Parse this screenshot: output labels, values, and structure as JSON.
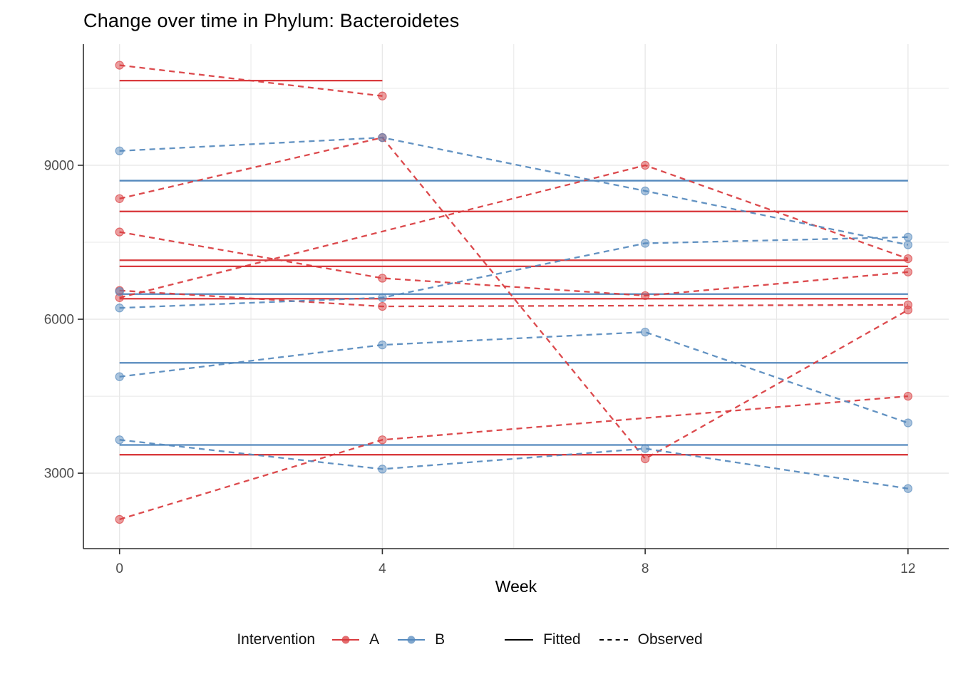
{
  "header": {
    "title": "Change over time in Phylum: Bacteroidetes"
  },
  "colors": {
    "red": "#D93B3E",
    "blue": "#5589BD",
    "grid": "#E8E8E8",
    "axis": "#2F2F2F",
    "tick_text": "#4D4D4D",
    "black": "#000000"
  },
  "legend": {
    "title": "Intervention",
    "groups": [
      {
        "label": "A",
        "color": "#D93B3E"
      },
      {
        "label": "B",
        "color": "#5589BD"
      }
    ],
    "linetypes": [
      {
        "label": "Fitted",
        "style": "solid"
      },
      {
        "label": "Observed",
        "style": "dashed"
      }
    ]
  },
  "chart_data": {
    "type": "line",
    "title": "Change over time in Phylum: Bacteroidetes",
    "xlabel": "Week",
    "ylabel": "",
    "xlim": [
      -0.55,
      12.62
    ],
    "ylim": [
      1530,
      11360
    ],
    "x_ticks": [
      0,
      4,
      8,
      12
    ],
    "x_minor": [
      2,
      6,
      10
    ],
    "y_ticks": [
      3000,
      6000,
      9000
    ],
    "y_minor": [
      4500,
      7500,
      10500
    ],
    "grid": true,
    "legend_position": "bottom",
    "series": [
      {
        "id": "A1",
        "group": "A",
        "color": "#D93B3E",
        "observed": {
          "weeks": [
            0,
            4
          ],
          "values": [
            10950,
            10350
          ]
        },
        "fitted": {
          "value": 10650,
          "weeks": [
            0,
            4
          ]
        }
      },
      {
        "id": "A2",
        "group": "A",
        "color": "#D93B3E",
        "observed": {
          "weeks": [
            0,
            4,
            8,
            12
          ],
          "values": [
            8350,
            9540,
            3280,
            6180
          ]
        },
        "fitted": {
          "value": 8100,
          "weeks": [
            0,
            12
          ]
        }
      },
      {
        "id": "A3",
        "group": "A",
        "color": "#D93B3E",
        "observed": {
          "weeks": [
            0,
            8,
            12
          ],
          "values": [
            6420,
            9000,
            7180
          ]
        },
        "fitted": {
          "value": 7150,
          "weeks": [
            0,
            12
          ]
        }
      },
      {
        "id": "A4",
        "group": "A",
        "color": "#D93B3E",
        "observed": {
          "weeks": [
            0,
            4,
            8,
            12
          ],
          "values": [
            7700,
            6800,
            6460,
            6920
          ]
        },
        "fitted": {
          "value": 7030,
          "weeks": [
            0,
            12
          ]
        }
      },
      {
        "id": "A5",
        "group": "A",
        "color": "#D93B3E",
        "observed": {
          "weeks": [
            0,
            4,
            12
          ],
          "values": [
            6560,
            6250,
            6280
          ]
        },
        "fitted": {
          "value": 6400,
          "weeks": [
            0,
            12
          ]
        }
      },
      {
        "id": "A6",
        "group": "A",
        "color": "#D93B3E",
        "observed": {
          "weeks": [
            0,
            4,
            12
          ],
          "values": [
            2100,
            3650,
            4500
          ]
        },
        "fitted": {
          "value": 3360,
          "weeks": [
            0,
            12
          ]
        }
      },
      {
        "id": "B1",
        "group": "B",
        "color": "#5589BD",
        "observed": {
          "weeks": [
            0,
            4,
            8,
            12
          ],
          "values": [
            9280,
            9540,
            8500,
            7450
          ]
        },
        "fitted": {
          "value": 8700,
          "weeks": [
            0,
            12
          ]
        }
      },
      {
        "id": "B2",
        "group": "B",
        "color": "#5589BD",
        "observed": {
          "weeks": [
            0,
            4,
            8,
            12
          ],
          "values": [
            6220,
            6420,
            7480,
            7600
          ]
        },
        "fitted": {
          "value": 6490,
          "weeks": [
            0,
            12
          ]
        }
      },
      {
        "id": "B3",
        "group": "B",
        "color": "#5589BD",
        "observed": {
          "weeks": [
            0,
            4,
            8,
            12
          ],
          "values": [
            4880,
            5500,
            5750,
            3980
          ]
        },
        "fitted": {
          "value": 5150,
          "weeks": [
            0,
            12
          ]
        }
      },
      {
        "id": "B4",
        "group": "B",
        "color": "#5589BD",
        "observed": {
          "weeks": [
            0,
            4,
            8,
            12
          ],
          "values": [
            3650,
            3080,
            3480,
            2700
          ]
        },
        "fitted": {
          "value": 3550,
          "weeks": [
            0,
            12
          ]
        }
      },
      {
        "id": "B5",
        "group": "B",
        "color": "#5589BD",
        "observed": {
          "weeks": [
            0
          ],
          "values": [
            6540
          ]
        },
        "fitted": null
      }
    ]
  }
}
